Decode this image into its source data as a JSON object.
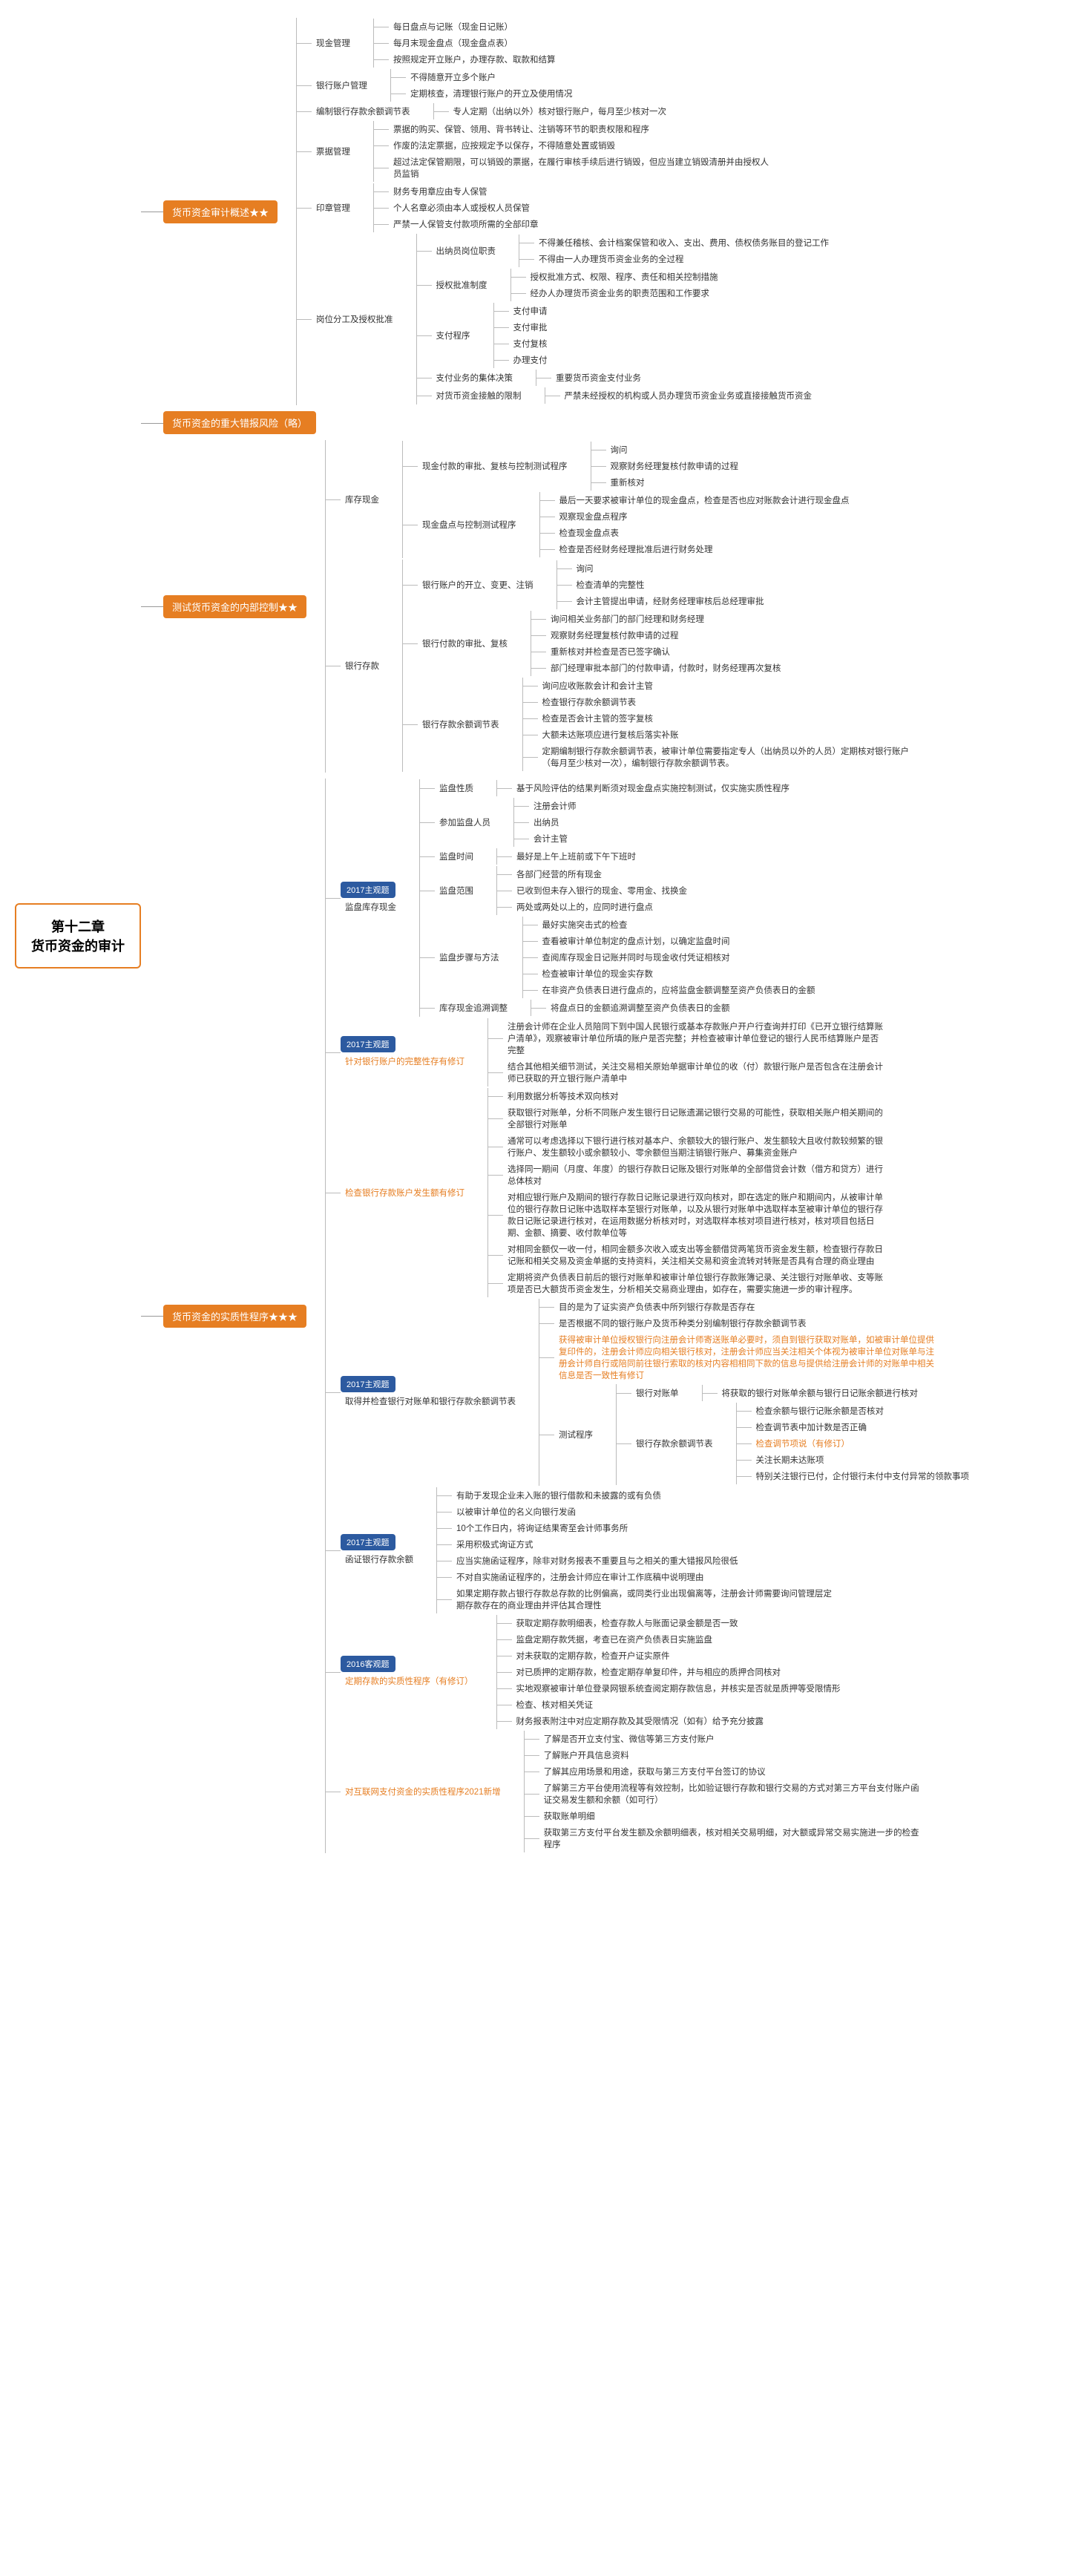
{
  "colors": {
    "orange": "#e67e22",
    "blue": "#2c5aa0",
    "line": "#999999",
    "text": "#333333",
    "bg": "#ffffff"
  },
  "root": {
    "line1": "第十二章",
    "line2": "货币资金的审计"
  },
  "sections": [
    {
      "label": "货币资金审计概述★★",
      "type": "orange",
      "children": [
        {
          "label": "现金管理",
          "children": [
            {
              "label": "每日盘点与记账（现金日记账）"
            },
            {
              "label": "每月末现金盘点（现金盘点表）"
            },
            {
              "label": "按照规定开立账户，办理存款、取款和结算"
            }
          ]
        },
        {
          "label": "银行账户管理",
          "children": [
            {
              "label": "不得随意开立多个账户"
            },
            {
              "label": "定期核查，清理银行账户的开立及使用情况"
            }
          ]
        },
        {
          "label": "编制银行存款余额调节表",
          "children": [
            {
              "label": "专人定期（出纳以外）核对银行账户，每月至少核对一次"
            }
          ]
        },
        {
          "label": "票据管理",
          "children": [
            {
              "label": "票据的购买、保管、领用、背书转让、注销等环节的职责权限和程序"
            },
            {
              "label": "作废的法定票据，应按规定予以保存，不得随意处置或销毁"
            },
            {
              "label": "超过法定保管期限，可以销毁的票据，在履行审核手续后进行销毁，但应当建立销毁清册并由授权人员监销"
            }
          ]
        },
        {
          "label": "印章管理",
          "children": [
            {
              "label": "财务专用章应由专人保管"
            },
            {
              "label": "个人名章必须由本人或授权人员保管"
            },
            {
              "label": "严禁一人保管支付款项所需的全部印章"
            }
          ]
        },
        {
          "label": "岗位分工及授权批准",
          "children": [
            {
              "label": "出纳员岗位职责",
              "children": [
                {
                  "label": "不得兼任稽核、会计档案保管和收入、支出、费用、债权债务账目的登记工作"
                },
                {
                  "label": "不得由一人办理货币资金业务的全过程"
                }
              ]
            },
            {
              "label": "授权批准制度",
              "children": [
                {
                  "label": "授权批准方式、权限、程序、责任和相关控制措施"
                },
                {
                  "label": "经办人办理货币资金业务的职责范围和工作要求"
                }
              ]
            },
            {
              "label": "支付程序",
              "children": [
                {
                  "label": "支付申请"
                },
                {
                  "label": "支付审批"
                },
                {
                  "label": "支付复核"
                },
                {
                  "label": "办理支付"
                }
              ]
            },
            {
              "label": "支付业务的集体决策",
              "children": [
                {
                  "label": "重要货币资金支付业务"
                }
              ]
            },
            {
              "label": "对货币资金接触的限制",
              "children": [
                {
                  "label": "严禁未经授权的机构或人员办理货币资金业务或直接接触货币资金"
                }
              ]
            }
          ]
        }
      ]
    },
    {
      "label": "货币资金的重大错报风险（略）",
      "type": "orange",
      "children": []
    },
    {
      "label": "测试货币资金的内部控制★★",
      "type": "orange",
      "children": [
        {
          "label": "库存现金",
          "children": [
            {
              "label": "现金付款的审批、复核与控制测试程序",
              "children": [
                {
                  "label": "询问"
                },
                {
                  "label": "观察财务经理复核付款申请的过程"
                },
                {
                  "label": "重新核对"
                }
              ]
            },
            {
              "label": "现金盘点与控制测试程序",
              "children": [
                {
                  "label": "最后一天要求被审计单位的现金盘点，检查是否也应对账款会计进行现金盘点"
                },
                {
                  "label": "观察现金盘点程序"
                },
                {
                  "label": "检查现金盘点表"
                },
                {
                  "label": "检查是否经财务经理批准后进行财务处理"
                }
              ]
            }
          ]
        },
        {
          "label": "银行存款",
          "children": [
            {
              "label": "银行账户的开立、变更、注销",
              "children": [
                {
                  "label": "询问"
                },
                {
                  "label": "检查清单的完整性"
                },
                {
                  "label": "会计主管提出申请，经财务经理审核后总经理审批"
                }
              ]
            },
            {
              "label": "银行付款的审批、复核",
              "children": [
                {
                  "label": "询问相关业务部门的部门经理和财务经理"
                },
                {
                  "label": "观察财务经理复核付款申请的过程"
                },
                {
                  "label": "重新核对并检查是否已签字确认"
                },
                {
                  "label": "部门经理审批本部门的付款申请，付款时，财务经理再次复核"
                }
              ]
            },
            {
              "label": "银行存款余额调节表",
              "children": [
                {
                  "label": "询问应收账款会计和会计主管"
                },
                {
                  "label": "检查银行存款余额调节表"
                },
                {
                  "label": "检查是否会计主管的签字复核"
                },
                {
                  "label": "大额未达账项应进行复核后落实补账"
                },
                {
                  "label": "定期编制银行存款余额调节表，被审计单位需要指定专人（出纳员以外的人员）定期核对银行账户（每月至少核对一次），编制银行存款余额调节表。"
                }
              ]
            }
          ]
        }
      ]
    },
    {
      "label": "货币资金的实质性程序★★★",
      "type": "orange",
      "children": [
        {
          "label": "监盘库存现金",
          "tag": "2017主观题",
          "children": [
            {
              "label": "监盘性质",
              "children": [
                {
                  "label": "基于风险评估的结果判断须对现金盘点实施控制测试，仅实施实质性程序"
                }
              ]
            },
            {
              "label": "参加监盘人员",
              "children": [
                {
                  "label": "注册会计师"
                },
                {
                  "label": "出纳员"
                },
                {
                  "label": "会计主管"
                }
              ]
            },
            {
              "label": "监盘时间",
              "children": [
                {
                  "label": "最好是上午上班前或下午下班时"
                }
              ]
            },
            {
              "label": "监盘范围",
              "children": [
                {
                  "label": "各部门经营的所有现金"
                },
                {
                  "label": "已收到但未存入银行的现金、零用金、找换金"
                },
                {
                  "label": "两处或两处以上的，应同时进行盘点"
                }
              ]
            },
            {
              "label": "监盘步骤与方法",
              "children": [
                {
                  "label": "最好实施突击式的检查"
                },
                {
                  "label": "查看被审计单位制定的盘点计划，以确定监盘时间"
                },
                {
                  "label": "查阅库存现金日记账并同时与现金收付凭证相核对"
                },
                {
                  "label": "检查被审计单位的现金实存数"
                },
                {
                  "label": "在非资产负债表日进行盘点的，应将监盘金额调整至资产负债表日的金额"
                }
              ]
            },
            {
              "label": "库存现金追溯调整",
              "children": [
                {
                  "label": "将盘点日的金额追溯调整至资产负债表日的金额"
                }
              ]
            }
          ]
        },
        {
          "label": "针对银行账户的完整性存有修订",
          "hl": true,
          "tag": "2017主观题",
          "children": [
            {
              "label": "注册会计师在企业人员陪同下到中国人民银行或基本存款账户开户行查询并打印《已开立银行结算账户清单》，观察被审计单位所填的账户是否完整；并检查被审计单位登记的银行人民币结算账户是否完整"
            },
            {
              "label": "结合其他相关细节测试，关注交易相关原始单据审计单位的收（付）款银行账户是否包含在注册会计师已获取的开立银行账户清单中"
            }
          ]
        },
        {
          "label": "检查银行存款账户发生额有修订",
          "hl": true,
          "children": [
            {
              "label": "利用数据分析等技术双向核对"
            },
            {
              "label": "获取银行对账单，分析不同账户发生银行日记账遗漏记银行交易的可能性，获取相关账户相关期间的全部银行对账单"
            },
            {
              "label": "通常可以考虑选择以下银行进行核对基本户、余额较大的银行账户、发生额较大且收付款较频繁的银行账户、发生额较小或余额较小、零余额但当期注销银行账户、募集资金账户"
            },
            {
              "label": "选择同一期间（月度、年度）的银行存款日记账及银行对账单的全部借贷会计数（借方和贷方）进行总体核对"
            },
            {
              "label": "对相应银行账户及期间的银行存款日记账记录进行双向核对，即在选定的账户和期间内，从被审计单位的银行存款日记账中选取样本至银行对账单，以及从银行对账单中选取样本至被审计单位的银行存款日记账记录进行核对，在运用数据分析核对时，对选取样本核对项目进行核对，核对项目包括日期、金额、摘要、收付款单位等"
            },
            {
              "label": "对相同金额仅一收一付，相同金额多次收入或支出等金额借贷两笔货币资金发生额，检查银行存款日记账和相关交易及资金单据的支持资料，关注相关交易和资金流转对转账是否具有合理的商业理由"
            },
            {
              "label": "定期将资产负债表日前后的银行对账单和被审计单位银行存款账簿记录、关注银行对账单收、支等账项是否已大额货币资金发生，分析相关交易商业理由，如存在，需要实施进一步的审计程序。"
            }
          ]
        },
        {
          "label": "取得并检查银行对账单和银行存款余额调节表",
          "tag": "2017主观题",
          "children": [
            {
              "label": "目的是为了证实资产负债表中所列银行存款是否存在"
            },
            {
              "label": "是否根据不同的银行账户及货币种类分别编制银行存款余额调节表"
            },
            {
              "label": "获得被审计单位授权银行向注册会计师寄送账单必要时，须自到银行获取对账单，如被审计单位提供复印件的，注册会计师应向相关银行核对，注册会计师应当关注相关个体视为被审计单位对账单与注册会计师自行或陪同前往银行索取的核对内容相相同下款的信息与提供给注册会计师的对账单中相关信息是否一致性有修订",
              "hl": true
            },
            {
              "label": "测试程序",
              "children": [
                {
                  "label": "银行对账单",
                  "children": [
                    {
                      "label": "将获取的银行对账单余额与银行日记账余额进行核对"
                    }
                  ]
                },
                {
                  "label": "银行存款余额调节表",
                  "children": [
                    {
                      "label": "检查余额与银行记账余额是否核对"
                    },
                    {
                      "label": "检查调节表中加计数是否正确"
                    },
                    {
                      "label": "检查调节项说（有修订）",
                      "hl": true
                    },
                    {
                      "label": "关注长期未达账项"
                    },
                    {
                      "label": "特别关注银行已付，企付银行未付中支付异常的领款事项"
                    }
                  ]
                }
              ]
            }
          ]
        },
        {
          "label": "函证银行存款余额",
          "tag": "2017主观题",
          "children": [
            {
              "label": "有助于发现企业未入账的银行借款和未披露的或有负债"
            },
            {
              "label": "以被审计单位的名义向银行发函"
            },
            {
              "label": "10个工作日内，将询证结果寄至会计师事务所"
            },
            {
              "label": "采用积极式询证方式"
            },
            {
              "label": "应当实施函证程序，除非对财务报表不重要且与之相关的重大错报风险很低"
            },
            {
              "label": "不对自实施函证程序的，注册会计师应在审计工作底稿中说明理由"
            },
            {
              "label": "如果定期存款占银行存款总存款的比例偏高，或同类行业出现偏离等，注册会计师需要询问管理层定期存款存在的商业理由并评估其合理性"
            }
          ]
        },
        {
          "label": "定期存款的实质性程序（有修订）",
          "hl": true,
          "tag": "2016客观题",
          "children": [
            {
              "label": "获取定期存款明细表，检查存款人与账面记录金额是否一致"
            },
            {
              "label": "监盘定期存款凭据，考查已在资产负债表日实施监盘"
            },
            {
              "label": "对未获取的定期存款，检查开户证实原件"
            },
            {
              "label": "对已质押的定期存款，检查定期存单复印件，并与相应的质押合同核对"
            },
            {
              "label": "实地观察被审计单位登录网银系统查阅定期存款信息，并核实是否就是质押等受限情形"
            },
            {
              "label": "检查、核对相关凭证"
            },
            {
              "label": "财务报表附注中对应定期存款及其受限情况（如有）给予充分披露"
            }
          ]
        },
        {
          "label": "对互联网支付资金的实质性程序2021新增",
          "hl": true,
          "children": [
            {
              "label": "了解是否开立支付宝、微信等第三方支付账户"
            },
            {
              "label": "了解账户开具信息资料"
            },
            {
              "label": "了解其应用场景和用途，获取与第三方支付平台签订的协议"
            },
            {
              "label": "了解第三方平台使用流程等有效控制，比如验证银行存款和银行交易的方式对第三方平台支付账户函证交易发生额和余额（如可行）"
            },
            {
              "label": "获取账单明细"
            },
            {
              "label": "获取第三方支付平台发生额及余额明细表，核对相关交易明细，对大额或异常交易实施进一步的检查程序"
            }
          ]
        }
      ]
    }
  ]
}
